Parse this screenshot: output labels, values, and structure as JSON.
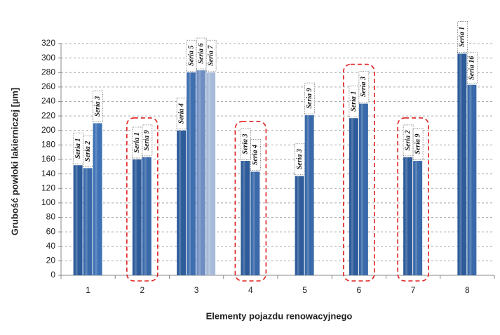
{
  "chart_data": {
    "type": "bar",
    "y_label": "Grubość powłoki lakierniczej [µm]",
    "x_label": "Elementy pojazdu renowacyjnego",
    "categories": [
      "1",
      "2",
      "3",
      "4",
      "5",
      "6",
      "7",
      "8"
    ],
    "groups": [
      {
        "bars": [
          {
            "name": "Seria 1",
            "value": 152,
            "color": "#2e5c9a"
          },
          {
            "name": "Seria 2",
            "value": 148,
            "color": "#3a6aaa"
          },
          {
            "name": "Seria 3",
            "value": 210,
            "color": "#3f72b5"
          }
        ],
        "highlight": false
      },
      {
        "bars": [
          {
            "name": "Seria 1",
            "value": 160,
            "color": "#2e5c9a"
          },
          {
            "name": "Seria 9",
            "value": 163,
            "color": "#3a6aaa"
          }
        ],
        "highlight": true
      },
      {
        "bars": [
          {
            "name": "Seria 4",
            "value": 200,
            "color": "#2e5c9a"
          },
          {
            "name": "Seria 5",
            "value": 280,
            "color": "#3f6fb0"
          },
          {
            "name": "Seria 6",
            "value": 283,
            "color": "#6f8fc2"
          },
          {
            "name": "Seria 7",
            "value": 280,
            "color": "#a7bbd9"
          }
        ],
        "highlight": false
      },
      {
        "bars": [
          {
            "name": "Seria 3",
            "value": 158,
            "color": "#2e5c9a"
          },
          {
            "name": "Seria 4",
            "value": 143,
            "color": "#3a6aaa"
          }
        ],
        "highlight": true
      },
      {
        "bars": [
          {
            "name": "Seria 3",
            "value": 137,
            "color": "#2e5c9a"
          },
          {
            "name": "Seria 9",
            "value": 221,
            "color": "#3a6aaa"
          }
        ],
        "highlight": false
      },
      {
        "bars": [
          {
            "name": "Seria 1",
            "value": 217,
            "color": "#2e5c9a"
          },
          {
            "name": "Seria 3",
            "value": 237,
            "color": "#3a6aaa"
          }
        ],
        "highlight": true
      },
      {
        "bars": [
          {
            "name": "Seria 2",
            "value": 163,
            "color": "#2e5c9a"
          },
          {
            "name": "Seria 9",
            "value": 158,
            "color": "#3a6aaa"
          }
        ],
        "highlight": true
      },
      {
        "bars": [
          {
            "name": "Seria 1",
            "value": 306,
            "color": "#2e5c9a"
          },
          {
            "name": "Seria 16",
            "value": 263,
            "color": "#3a6aaa"
          }
        ],
        "highlight": false
      }
    ],
    "ylim": [
      0,
      320
    ],
    "yticks": [
      0,
      20,
      40,
      60,
      80,
      100,
      120,
      140,
      160,
      180,
      200,
      220,
      240,
      260,
      280,
      300,
      320
    ],
    "grid": true
  }
}
